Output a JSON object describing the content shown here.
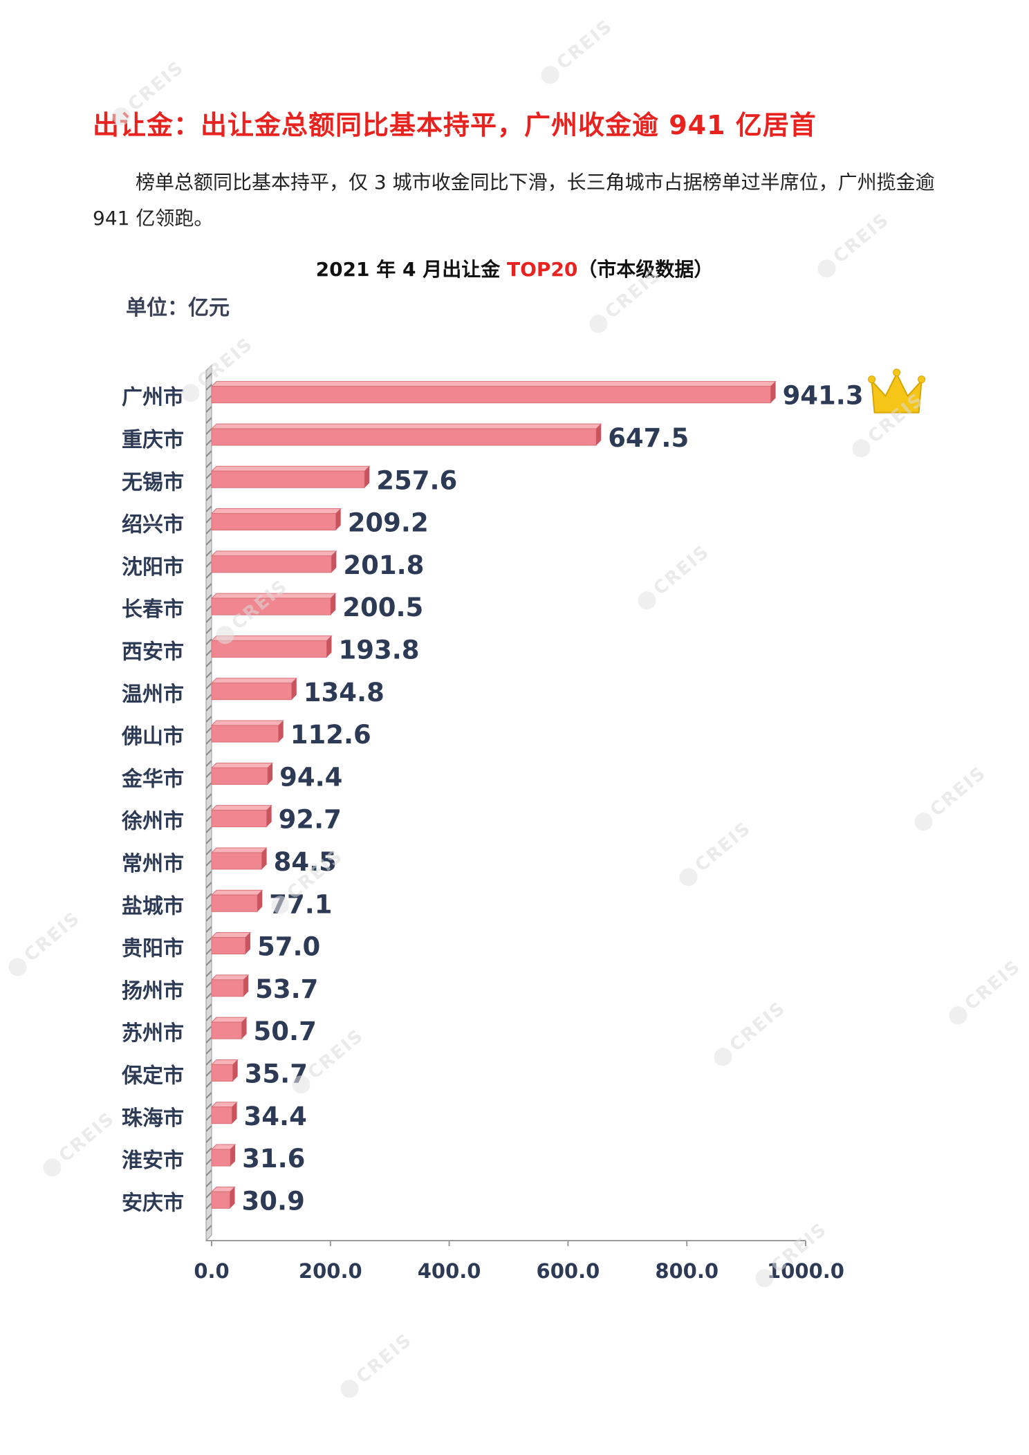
{
  "heading": "出让金：出让金总额同比基本持平，广州收金逾 941 亿居首",
  "paragraph": "榜单总额同比基本持平，仅 3 城市收金同比下滑，长三角城市占据榜单过半席位，广州揽金逾 941 亿领跑。",
  "chart_title": {
    "prefix": "2021 年 4 月出让金 ",
    "highlight": "TOP20",
    "suffix": "（市本级数据）"
  },
  "watermark": "CREIS",
  "colors": {
    "heading": "#e8231f",
    "bar": "#f0868f",
    "bar_top": "#f7b3b8",
    "bar_end": "#c9545e",
    "label": "#2d3a55"
  },
  "chart_data": {
    "type": "bar",
    "orientation": "horizontal",
    "title": "2021 年 4 月出让金 TOP20（市本级数据）",
    "unit_label": "单位：亿元",
    "categories": [
      "广州市",
      "重庆市",
      "无锡市",
      "绍兴市",
      "沈阳市",
      "长春市",
      "西安市",
      "温州市",
      "佛山市",
      "金华市",
      "徐州市",
      "常州市",
      "盐城市",
      "贵阳市",
      "扬州市",
      "苏州市",
      "保定市",
      "珠海市",
      "淮安市",
      "安庆市"
    ],
    "values": [
      941.3,
      647.5,
      257.6,
      209.2,
      201.8,
      200.5,
      193.8,
      134.8,
      112.6,
      94.4,
      92.7,
      84.5,
      77.1,
      57.0,
      53.7,
      50.7,
      35.7,
      34.4,
      31.6,
      30.9
    ],
    "value_labels": [
      "941.3",
      "647.5",
      "257.6",
      "209.2",
      "201.8",
      "200.5",
      "193.8",
      "134.8",
      "112.6",
      "94.4",
      "92.7",
      "84.5",
      "77.1",
      "57.0",
      "53.7",
      "50.7",
      "35.7",
      "34.4",
      "31.6",
      "30.9"
    ],
    "xlim": [
      0,
      1000
    ],
    "xticks": [
      "0.0",
      "200.0",
      "400.0",
      "600.0",
      "800.0",
      "1000.0"
    ],
    "tick_values": [
      0,
      200,
      400,
      600,
      800,
      1000
    ],
    "annotation": "crown-icon on top bar",
    "grid": false,
    "legend": "none"
  }
}
